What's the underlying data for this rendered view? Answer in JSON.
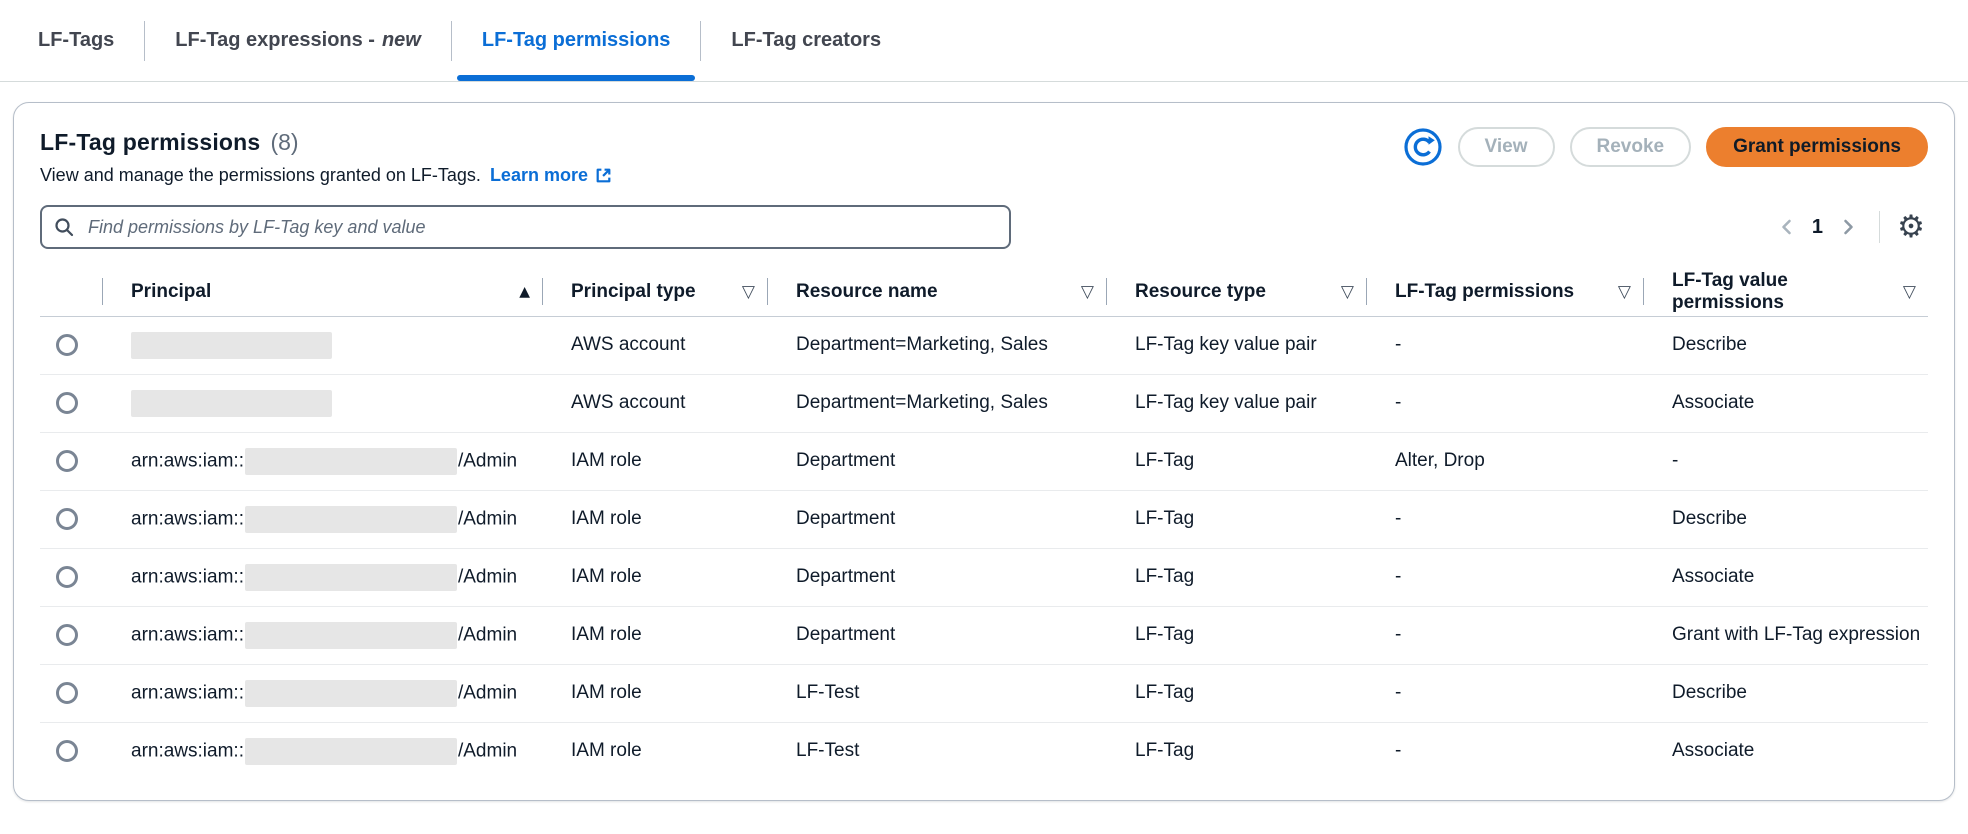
{
  "colors": {
    "accent_blue": "#0b6ed6",
    "primary_orange": "#ec7f2e",
    "text_dark": "#0f1b2a",
    "muted_gray": "#5f6b7a",
    "disabled_text": "#a4b1ba",
    "redaction_gray": "#e6e6e6"
  },
  "glyphs": {
    "sort_asc": "▲",
    "filter": "▽",
    "gear": "⚙"
  },
  "tabs": [
    {
      "label": "LF-Tags",
      "active": false
    },
    {
      "label": "LF-Tag expressions -",
      "em": "new",
      "active": false
    },
    {
      "label": "LF-Tag permissions",
      "active": true
    },
    {
      "label": "LF-Tag creators",
      "active": false
    }
  ],
  "panel": {
    "title": "LF-Tag permissions",
    "count": "(8)",
    "description": "View and manage the permissions granted on LF-Tags.",
    "learn_more_label": "Learn more",
    "actions": {
      "view_label": "View",
      "revoke_label": "Revoke",
      "grant_label": "Grant permissions"
    },
    "search": {
      "placeholder": "Find permissions by LF-Tag key and value",
      "value": ""
    },
    "pagination": {
      "current_page": "1"
    }
  },
  "table": {
    "columns": [
      {
        "label": "Principal",
        "icon": "sort-asc"
      },
      {
        "label": "Principal type",
        "icon": "filter"
      },
      {
        "label": "Resource name",
        "icon": "filter"
      },
      {
        "label": "Resource type",
        "icon": "filter"
      },
      {
        "label": "LF-Tag permissions",
        "icon": "filter"
      },
      {
        "label": "LF-Tag value permissions",
        "icon": "filter"
      }
    ],
    "rows": [
      {
        "principal": {
          "prefix": "",
          "redacted": true,
          "suffix": ""
        },
        "principal_type": "AWS account",
        "resource_name": "Department=Marketing, Sales",
        "resource_type": "LF-Tag key value pair",
        "lf_tag_permissions": "-",
        "lf_tag_value_permissions": "Describe"
      },
      {
        "principal": {
          "prefix": "",
          "redacted": true,
          "suffix": ""
        },
        "principal_type": "AWS account",
        "resource_name": "Department=Marketing, Sales",
        "resource_type": "LF-Tag key value pair",
        "lf_tag_permissions": "-",
        "lf_tag_value_permissions": "Associate"
      },
      {
        "principal": {
          "prefix": "arn:aws:iam::",
          "redacted": true,
          "suffix": "/Admin"
        },
        "principal_type": "IAM role",
        "resource_name": "Department",
        "resource_type": "LF-Tag",
        "lf_tag_permissions": "Alter, Drop",
        "lf_tag_value_permissions": "-"
      },
      {
        "principal": {
          "prefix": "arn:aws:iam::",
          "redacted": true,
          "suffix": "/Admin"
        },
        "principal_type": "IAM role",
        "resource_name": "Department",
        "resource_type": "LF-Tag",
        "lf_tag_permissions": "-",
        "lf_tag_value_permissions": "Describe"
      },
      {
        "principal": {
          "prefix": "arn:aws:iam::",
          "redacted": true,
          "suffix": "/Admin"
        },
        "principal_type": "IAM role",
        "resource_name": "Department",
        "resource_type": "LF-Tag",
        "lf_tag_permissions": "-",
        "lf_tag_value_permissions": "Associate"
      },
      {
        "principal": {
          "prefix": "arn:aws:iam::",
          "redacted": true,
          "suffix": "/Admin"
        },
        "principal_type": "IAM role",
        "resource_name": "Department",
        "resource_type": "LF-Tag",
        "lf_tag_permissions": "-",
        "lf_tag_value_permissions": "Grant with LF-Tag expression"
      },
      {
        "principal": {
          "prefix": "arn:aws:iam::",
          "redacted": true,
          "suffix": "/Admin"
        },
        "principal_type": "IAM role",
        "resource_name": "LF-Test",
        "resource_type": "LF-Tag",
        "lf_tag_permissions": "-",
        "lf_tag_value_permissions": "Describe"
      },
      {
        "principal": {
          "prefix": "arn:aws:iam::",
          "redacted": true,
          "suffix": "/Admin"
        },
        "principal_type": "IAM role",
        "resource_name": "LF-Test",
        "resource_type": "LF-Tag",
        "lf_tag_permissions": "-",
        "lf_tag_value_permissions": "Associate"
      }
    ]
  }
}
